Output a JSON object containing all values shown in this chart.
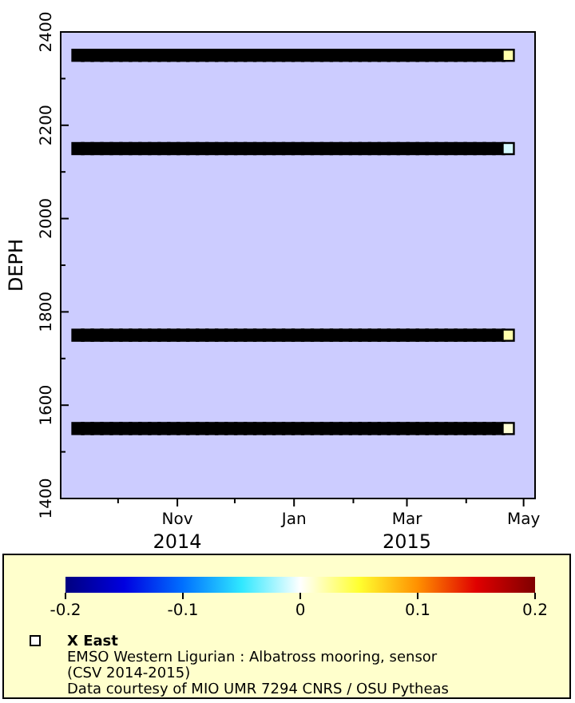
{
  "chart_data": {
    "type": "scatter",
    "ylabel": "DEPH",
    "clabel": "X East",
    "marker": "square",
    "grid": false,
    "xlim": [
      "2014-09-01",
      "2015-05-07"
    ],
    "xticks": [
      {
        "value": "2014-10-01",
        "label": null
      },
      {
        "value": "2014-11-01",
        "label": "Nov\n2014"
      },
      {
        "value": "2014-12-01",
        "label": null
      },
      {
        "value": "2015-01-01",
        "label": "Jan"
      },
      {
        "value": "2015-02-01",
        "label": null
      },
      {
        "value": "2015-03-01",
        "label": "Mar\n2015"
      },
      {
        "value": "2015-04-01",
        "label": null
      },
      {
        "value": "2015-05-01",
        "label": "May"
      }
    ],
    "ylim": [
      1400,
      2400
    ],
    "yticks": [
      1400,
      {
        "value": 1500,
        "label": null
      },
      1600,
      {
        "value": 1700,
        "label": null
      },
      1800,
      {
        "value": 1900,
        "label": null
      },
      2000,
      {
        "value": 2100,
        "label": null
      },
      2200,
      {
        "value": 2300,
        "label": null
      },
      2400
    ],
    "clim": [
      -0.2,
      0.2
    ],
    "cticks": [
      -0.2,
      -0.1,
      0,
      0.1,
      0.2
    ],
    "x": [
      "2014-09-10",
      "2014-09-15",
      "2014-09-20",
      "2014-09-25",
      "2014-09-30",
      "2014-10-05",
      "2014-10-10",
      "2014-10-15",
      "2014-10-20",
      "2014-10-25",
      "2014-10-30",
      "2014-11-04",
      "2014-11-09",
      "2014-11-14",
      "2014-11-19",
      "2014-11-24",
      "2014-11-29",
      "2014-12-04",
      "2014-12-09",
      "2014-12-14",
      "2014-12-19",
      "2014-12-24",
      "2014-12-29",
      "2015-01-03",
      "2015-01-08",
      "2015-01-13",
      "2015-01-18",
      "2015-01-23",
      "2015-01-28",
      "2015-02-02",
      "2015-02-07",
      "2015-02-12",
      "2015-02-17",
      "2015-02-22",
      "2015-02-27",
      "2015-03-04",
      "2015-03-09",
      "2015-03-14",
      "2015-03-19",
      "2015-03-24",
      "2015-03-29",
      "2015-04-03",
      "2015-04-08",
      "2015-04-13",
      "2015-04-18",
      "2015-04-23"
    ],
    "series": [
      {
        "values": [
          2350,
          2350,
          2350,
          2350,
          2350,
          2350,
          2350,
          2350,
          2350,
          2350,
          2350,
          2350,
          2350,
          2350,
          2350,
          2350,
          2350,
          2350,
          2350,
          2350,
          2350,
          2350,
          2350,
          2350,
          2350,
          2350,
          2350,
          2350,
          2350,
          2350,
          2350,
          2350,
          2350,
          2350,
          2350,
          2350,
          2350,
          2350,
          2350,
          2350,
          2350,
          2350,
          2350,
          2350,
          2350,
          2350
        ],
        "cvalues": [
          null,
          null,
          null,
          null,
          null,
          null,
          null,
          null,
          null,
          null,
          null,
          null,
          null,
          null,
          null,
          null,
          null,
          null,
          null,
          null,
          null,
          null,
          null,
          null,
          null,
          null,
          null,
          null,
          null,
          null,
          null,
          null,
          null,
          null,
          null,
          null,
          null,
          null,
          null,
          null,
          null,
          null,
          null,
          null,
          null,
          0.02
        ],
        "colors": [
          "#000000",
          "#000000",
          "#000000",
          "#000000",
          "#000000",
          "#000000",
          "#000000",
          "#000000",
          "#000000",
          "#000000",
          "#000000",
          "#000000",
          "#000000",
          "#000000",
          "#000000",
          "#000000",
          "#000000",
          "#000000",
          "#000000",
          "#000000",
          "#000000",
          "#000000",
          "#000000",
          "#000000",
          "#000000",
          "#000000",
          "#000000",
          "#000000",
          "#000000",
          "#000000",
          "#000000",
          "#000000",
          "#000000",
          "#000000",
          "#000000",
          "#000000",
          "#000000",
          "#000000",
          "#000000",
          "#000000",
          "#000000",
          "#000000",
          "#000000",
          "#000000",
          "#000000",
          null
        ]
      },
      {
        "values": [
          2150,
          2150,
          2150,
          2150,
          2150,
          2150,
          2150,
          2150,
          2150,
          2150,
          2150,
          2150,
          2150,
          2150,
          2150,
          2150,
          2150,
          2150,
          2150,
          2150,
          2150,
          2150,
          2150,
          2150,
          2150,
          2150,
          2150,
          2150,
          2150,
          2150,
          2150,
          2150,
          2150,
          2150,
          2150,
          2150,
          2150,
          2150,
          2150,
          2150,
          2150,
          2150,
          2150,
          2150,
          2150,
          2150
        ],
        "cvalues": [
          null,
          null,
          null,
          null,
          null,
          null,
          null,
          null,
          null,
          null,
          null,
          null,
          null,
          null,
          null,
          null,
          null,
          null,
          null,
          null,
          null,
          null,
          null,
          null,
          null,
          null,
          null,
          null,
          null,
          null,
          null,
          null,
          null,
          null,
          null,
          null,
          null,
          null,
          null,
          null,
          null,
          null,
          null,
          null,
          null,
          -0.01
        ],
        "colors": [
          "#000000",
          "#000000",
          "#000000",
          "#000000",
          "#000000",
          "#000000",
          "#000000",
          "#000000",
          "#000000",
          "#000000",
          "#000000",
          "#000000",
          "#000000",
          "#000000",
          "#000000",
          "#000000",
          "#000000",
          "#000000",
          "#000000",
          "#000000",
          "#000000",
          "#000000",
          "#000000",
          "#000000",
          "#000000",
          "#000000",
          "#000000",
          "#000000",
          "#000000",
          "#000000",
          "#000000",
          "#000000",
          "#000000",
          "#000000",
          "#000000",
          "#000000",
          "#000000",
          "#000000",
          "#000000",
          "#000000",
          "#000000",
          "#000000",
          "#000000",
          "#000000",
          "#000000",
          null
        ]
      },
      {
        "values": [
          1750,
          1750,
          1750,
          1750,
          1750,
          1750,
          1750,
          1750,
          1750,
          1750,
          1750,
          1750,
          1750,
          1750,
          1750,
          1750,
          1750,
          1750,
          1750,
          1750,
          1750,
          1750,
          1750,
          1750,
          1750,
          1750,
          1750,
          1750,
          1750,
          1750,
          1750,
          1750,
          1750,
          1750,
          1750,
          1750,
          1750,
          1750,
          1750,
          1750,
          1750,
          1750,
          1750,
          1750,
          1750,
          1750
        ],
        "cvalues": [
          null,
          null,
          null,
          null,
          null,
          null,
          null,
          null,
          null,
          null,
          null,
          null,
          null,
          null,
          null,
          null,
          null,
          null,
          null,
          null,
          null,
          null,
          null,
          null,
          null,
          null,
          null,
          null,
          null,
          null,
          null,
          null,
          null,
          null,
          null,
          null,
          null,
          null,
          null,
          null,
          null,
          null,
          null,
          null,
          null,
          0.02
        ],
        "colors": [
          "#000000",
          "#000000",
          "#000000",
          "#000000",
          "#000000",
          "#000000",
          "#000000",
          "#000000",
          "#000000",
          "#000000",
          "#000000",
          "#000000",
          "#000000",
          "#000000",
          "#000000",
          "#000000",
          "#000000",
          "#000000",
          "#000000",
          "#000000",
          "#000000",
          "#000000",
          "#000000",
          "#000000",
          "#000000",
          "#000000",
          "#000000",
          "#000000",
          "#000000",
          "#000000",
          "#000000",
          "#000000",
          "#000000",
          "#000000",
          "#000000",
          "#000000",
          "#000000",
          "#000000",
          "#000000",
          "#000000",
          "#000000",
          "#000000",
          "#000000",
          "#000000",
          "#000000",
          null
        ]
      },
      {
        "values": [
          1550,
          1550,
          1550,
          1550,
          1550,
          1550,
          1550,
          1550,
          1550,
          1550,
          1550,
          1550,
          1550,
          1550,
          1550,
          1550,
          1550,
          1550,
          1550,
          1550,
          1550,
          1550,
          1550,
          1550,
          1550,
          1550,
          1550,
          1550,
          1550,
          1550,
          1550,
          1550,
          1550,
          1550,
          1550,
          1550,
          1550,
          1550,
          1550,
          1550,
          1550,
          1550,
          1550,
          1550,
          1550,
          1550
        ],
        "cvalues": [
          null,
          null,
          null,
          null,
          null,
          null,
          null,
          null,
          null,
          null,
          null,
          null,
          null,
          null,
          null,
          null,
          null,
          null,
          null,
          null,
          null,
          null,
          null,
          null,
          null,
          null,
          null,
          null,
          null,
          null,
          null,
          null,
          null,
          null,
          null,
          null,
          null,
          null,
          null,
          null,
          null,
          null,
          null,
          null,
          null,
          0.01
        ],
        "colors": [
          "#000000",
          "#000000",
          "#000000",
          "#000000",
          "#000000",
          "#000000",
          "#000000",
          "#000000",
          "#000000",
          "#000000",
          "#000000",
          "#000000",
          "#000000",
          "#000000",
          "#000000",
          "#000000",
          "#000000",
          "#000000",
          "#000000",
          "#000000",
          "#000000",
          "#000000",
          "#000000",
          "#000000",
          "#000000",
          "#000000",
          "#000000",
          "#000000",
          "#000000",
          "#000000",
          "#000000",
          "#000000",
          "#000000",
          "#000000",
          "#000000",
          "#000000",
          "#000000",
          "#000000",
          "#000000",
          "#000000",
          "#000000",
          "#000000",
          "#000000",
          "#000000",
          "#000000",
          null
        ]
      }
    ],
    "annotations": [
      "EMSO Western Ligurian : Albatross mooring, sensor",
      "(CSV 2014-2015)",
      "Data courtesy of MIO UMR 7294 CNRS / OSU Pytheas"
    ]
  }
}
